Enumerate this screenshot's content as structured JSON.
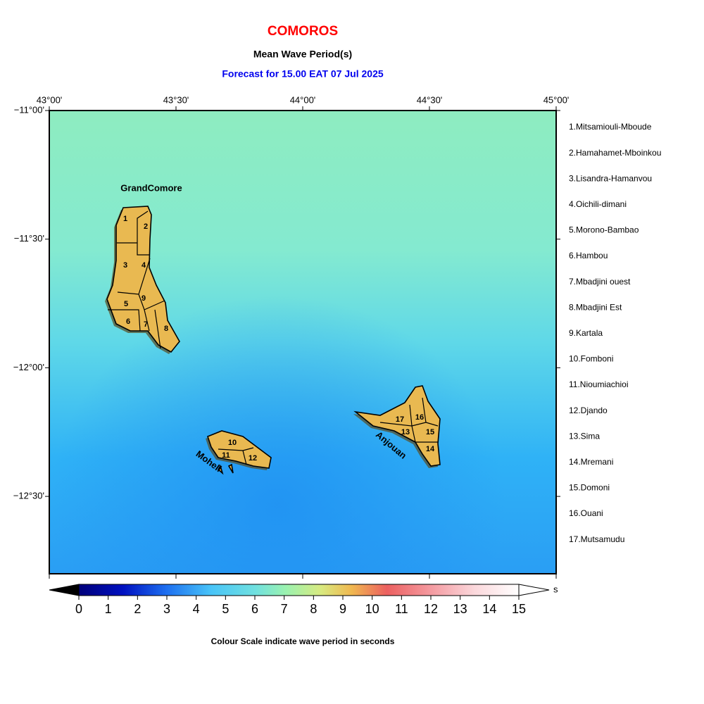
{
  "header": {
    "title": "COMOROS",
    "subtitle": "Mean Wave Period(s)",
    "forecast": "Forecast for  15.00 EAT 07 Jul 2025"
  },
  "map": {
    "lon_labels": [
      "43°00'",
      "43°30'",
      "44°00'",
      "44°30'",
      "45°00'"
    ],
    "lat_labels": [
      "−11°00'",
      "−11°30'",
      "−12°00'",
      "−12°30'"
    ],
    "islands": [
      {
        "name": "GrandComore",
        "districts": [
          "1",
          "2",
          "3",
          "4",
          "5",
          "6",
          "7",
          "8",
          "9"
        ]
      },
      {
        "name": "Moheli",
        "districts": [
          "10",
          "11",
          "12"
        ]
      },
      {
        "name": "Anjouan",
        "districts": [
          "13",
          "14",
          "15",
          "16",
          "17"
        ]
      }
    ]
  },
  "legend": {
    "districts": [
      "1.Mitsamiouli-Mboude",
      "2.Hamahamet-Mboinkou",
      "3.Lisandra-Hamanvou",
      "4.Oichili-dimani",
      "5.Morono-Bambao",
      "6.Hambou",
      "7.Mbadjini ouest",
      "8.Mbadjini Est",
      "9.Kartala",
      "10.Fomboni",
      "11.Nioumiachioi",
      "12.Djando",
      "13.Sima",
      "14.Mremani",
      "15.Domoni",
      "16.Ouani",
      "17.Mutsamudu"
    ]
  },
  "colorbar": {
    "ticks": [
      0,
      1,
      2,
      3,
      4,
      5,
      6,
      7,
      8,
      9,
      10,
      11,
      12,
      13,
      14,
      15
    ],
    "unit": "s",
    "caption": "Colour Scale indicate wave period in seconds"
  }
}
